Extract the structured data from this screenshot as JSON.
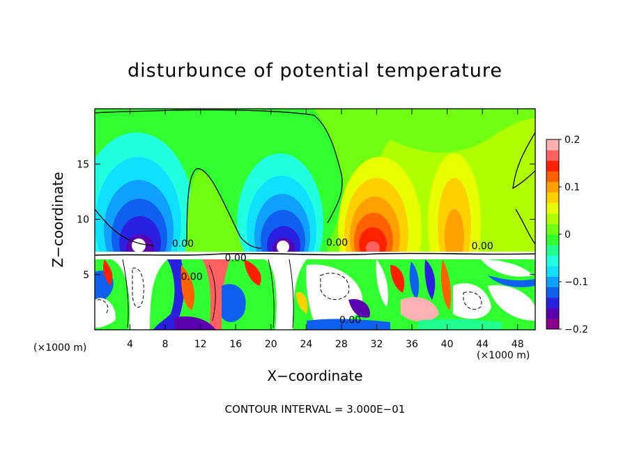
{
  "chart_data": {
    "type": "heatmap",
    "title": "disturbunce of potential temperature",
    "xlabel": "X−coordinate",
    "ylabel": "Z−coordinate",
    "x_unit": "(×1000 m)",
    "z_unit": "(×1000 m)",
    "xlim": [
      0,
      50
    ],
    "ylim": [
      0,
      20
    ],
    "xticks": [
      4,
      8,
      12,
      16,
      20,
      24,
      28,
      32,
      36,
      40,
      44,
      48
    ],
    "yticks": [
      5,
      10,
      15
    ],
    "colorbar": {
      "range": [
        -0.2,
        0.2
      ],
      "tick_values": [
        0.2,
        0.1,
        0,
        -0.1,
        -0.2
      ],
      "tick_labels": [
        "0.2",
        "0.1",
        "0",
        "−0.1",
        "−0.2"
      ],
      "colors": [
        "#8b008b",
        "#5a00b0",
        "#2a20e0",
        "#1060f0",
        "#10a0ff",
        "#10e0ff",
        "#20ffe0",
        "#20ff90",
        "#30ff30",
        "#70ff10",
        "#b0ff00",
        "#e8ff00",
        "#ffd000",
        "#ffa000",
        "#ff6000",
        "#ff2000",
        "#ff6060",
        "#ffb0b0"
      ]
    },
    "contour_labels": [
      "0.00",
      "0.00",
      "0.00",
      "0.00",
      "0.00",
      "0.00"
    ],
    "contour_interval_text": "CONTOUR INTERVAL = 3.000E−01",
    "features": {
      "cool_plumes_x": [
        5,
        21
      ],
      "warm_plumes_x": [
        31,
        41
      ],
      "layer_interface_z": 7.3
    }
  }
}
